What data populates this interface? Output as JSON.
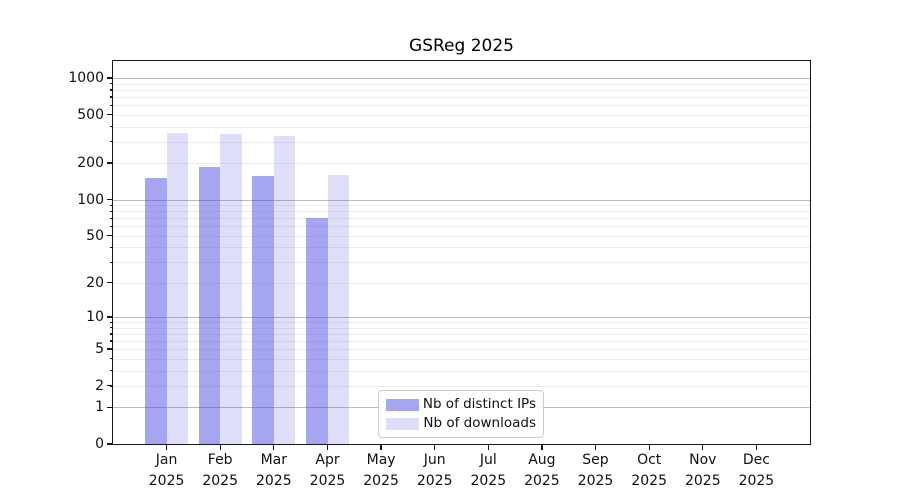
{
  "chart_data": {
    "type": "bar",
    "title": "GSReg 2025",
    "year": "2025",
    "months": [
      "Jan",
      "Feb",
      "Mar",
      "Apr",
      "May",
      "Jun",
      "Jul",
      "Aug",
      "Sep",
      "Oct",
      "Nov",
      "Dec"
    ],
    "series": [
      {
        "name": "Nb of distinct IPs",
        "color": "rgba(75,75,228,0.5)",
        "legend_color": "#a5a5f1",
        "values": [
          150,
          185,
          158,
          70,
          null,
          null,
          null,
          null,
          null,
          null,
          null,
          null
        ]
      },
      {
        "name": "Nb of downloads",
        "color": "rgba(75,75,228,0.18)",
        "legend_color": "#dedefa",
        "values": [
          355,
          345,
          335,
          160,
          null,
          null,
          null,
          null,
          null,
          null,
          null,
          null
        ]
      }
    ],
    "y_axis": {
      "scale": "log1p",
      "ylim": [
        0,
        1380
      ],
      "tick_labels": [
        0,
        1,
        2,
        5,
        10,
        20,
        50,
        100,
        200,
        500,
        1000
      ]
    },
    "x_axis": {
      "tick_label_format": "Month over Year, e.g. Jan / 2025"
    },
    "grid": {
      "major_values": [
        1,
        10,
        100,
        1000
      ],
      "minor_multipliers": [
        2,
        3,
        4,
        5,
        6,
        7,
        8,
        9
      ],
      "minor_decades": [
        1,
        10,
        100
      ],
      "major_color": "#bbbbbb",
      "minor_color": "#ececec",
      "orientation": "horizontal"
    },
    "legend": {
      "position": "lower-center",
      "border_color": "#cccccc"
    },
    "colors": {
      "spine": "#15151a",
      "text": "#111111",
      "background": "#ffffff"
    }
  }
}
